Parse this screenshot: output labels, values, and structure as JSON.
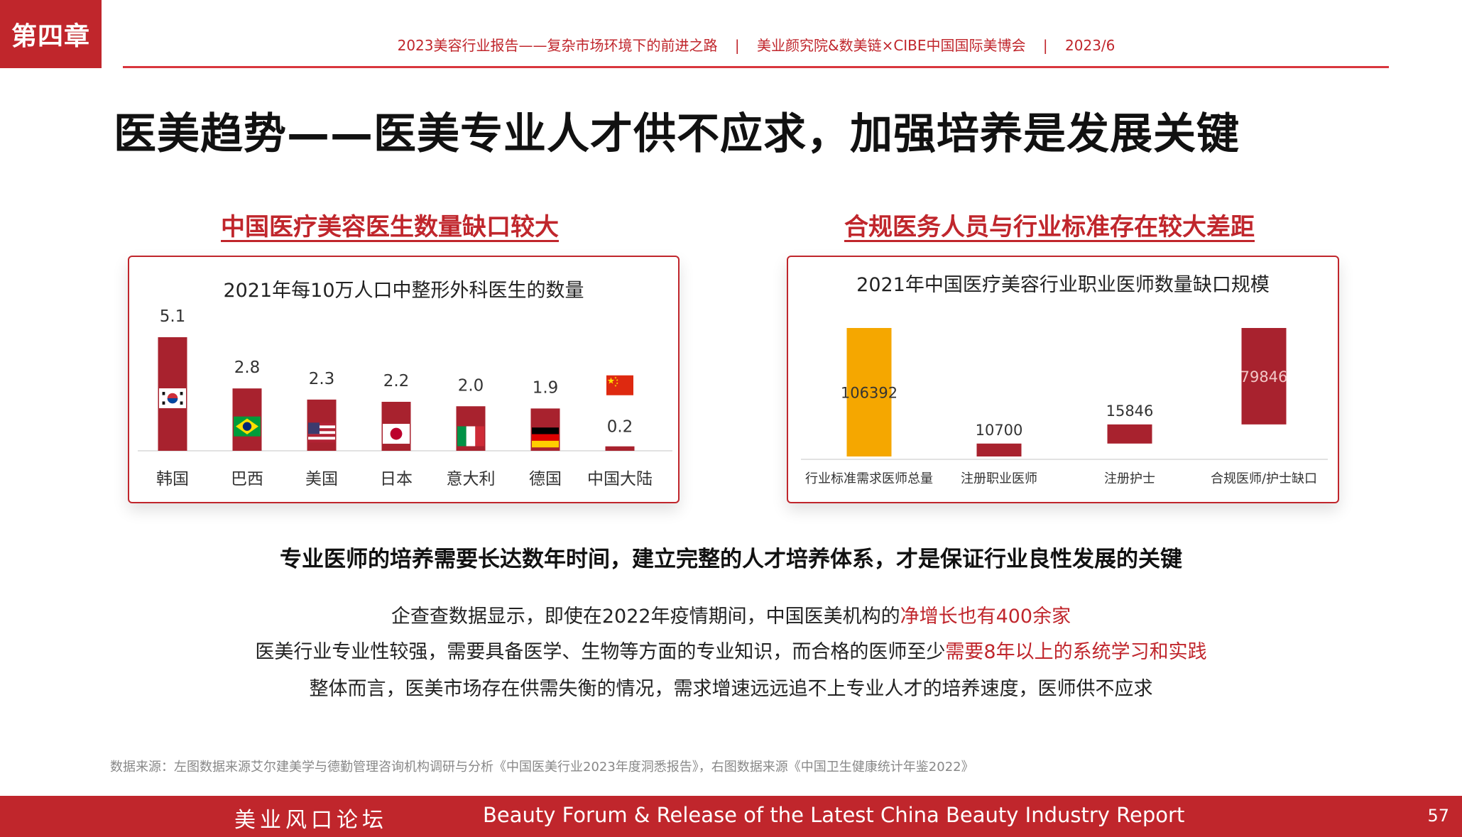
{
  "chapter": "第四章",
  "header": {
    "report": "2023美容行业报告——复杂市场环境下的前进之路",
    "org": "美业颜究院&数美链×CIBE中国国际美博会",
    "date": "2023/6",
    "separator": "|"
  },
  "title": "医美趋势——医美专业人才供不应求，加强培养是发展关键",
  "left_section": {
    "heading": "中国医疗美容医生数量缺口较大"
  },
  "right_section": {
    "heading": "合规医务人员与行业标准存在较大差距"
  },
  "chart_data": [
    {
      "type": "bar",
      "title": "2021年每10万人口中整形外科医生的数量",
      "categories": [
        "韩国",
        "巴西",
        "美国",
        "日本",
        "意大利",
        "德国",
        "中国大陆"
      ],
      "values": [
        5.1,
        2.8,
        2.3,
        2.2,
        2.0,
        1.9,
        0.2
      ],
      "value_labels": [
        "5.1",
        "2.8",
        "2.3",
        "2.2",
        "2.0",
        "1.9",
        "0.2"
      ],
      "flags": [
        "korea-flag-icon",
        "brazil-flag-icon",
        "usa-flag-icon",
        "japan-flag-icon",
        "italy-flag-icon",
        "germany-flag-icon",
        "china-flag-icon"
      ],
      "bar_color": "#a8222e",
      "grid": false
    },
    {
      "type": "bar",
      "subtype": "waterfall",
      "title": "2021年中国医疗美容行业职业医师数量缺口规模",
      "categories": [
        "行业标准需求医师总量",
        "注册职业医师",
        "注册护士",
        "合规医师/护士缺口"
      ],
      "values": [
        106392,
        10700,
        15846,
        79846
      ],
      "value_labels": [
        "106392",
        "10700",
        "15846",
        "79846"
      ],
      "colors": [
        "#f5a700",
        "#a8222e",
        "#a8222e",
        "#a8222e"
      ],
      "grid": false
    }
  ],
  "lead": "专业医师的培养需要长达数年时间，建立完整的人才培养体系，才是保证行业良性发展的关键",
  "body": {
    "line1_plain": "企查查数据显示，即使在2022年疫情期间，中国医美机构的",
    "line1_highlight": "净增长也有400余家",
    "line2_plain": "医美行业专业性较强，需要具备医学、生物等方面的专业知识，而合格的医师至少",
    "line2_highlight": "需要8年以上的系统学习和实践",
    "line3": "整体而言，医美市场存在供需失衡的情况，需求增速远远追不上专业人才的培养速度，医师供不应求"
  },
  "source": "数据来源：左图数据来源艾尔建美学与德勤管理咨询机构调研与分析《中国医美行业2023年度洞悉报告》，右图数据来源《中国卫生健康统计年鉴2022》",
  "footer": {
    "cn": "美业风口论坛",
    "en": "Beauty Forum & Release of the Latest China Beauty Industry Report",
    "page": "57"
  },
  "colors": {
    "accent": "#c0262c",
    "bar": "#a8222e",
    "gold": "#f5a700"
  }
}
